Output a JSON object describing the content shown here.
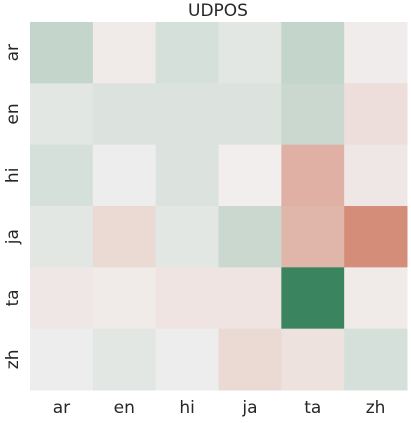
{
  "chart_data": {
    "type": "heatmap",
    "title": "UDPOS",
    "columns": [
      "ar",
      "en",
      "hi",
      "ja",
      "ta",
      "zh"
    ],
    "rows": [
      "ar",
      "en",
      "hi",
      "ja",
      "ta",
      "zh"
    ],
    "values": [
      [
        0.25,
        -0.05,
        0.15,
        0.08,
        0.25,
        -0.03
      ],
      [
        0.08,
        0.12,
        0.12,
        0.12,
        0.22,
        -0.15
      ],
      [
        0.15,
        0.03,
        0.12,
        -0.02,
        -0.55,
        -0.08
      ],
      [
        0.08,
        -0.2,
        0.08,
        0.22,
        -0.5,
        -0.85
      ],
      [
        -0.08,
        -0.05,
        -0.1,
        -0.1,
        1.0,
        -0.05
      ],
      [
        0.03,
        0.08,
        0.03,
        -0.2,
        -0.12,
        0.15
      ]
    ],
    "zlim": [
      -1,
      1
    ],
    "colors": [
      "#cf7b64",
      "#f2f0f0",
      "#3a8560"
    ]
  }
}
